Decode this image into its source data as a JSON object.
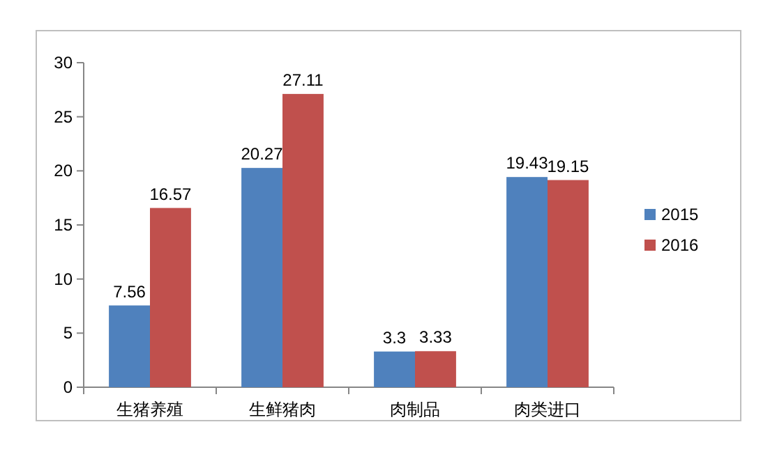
{
  "chart_data": {
    "type": "bar",
    "categories": [
      "生猪养殖",
      "生鲜猪肉",
      "肉制品",
      "肉类进口"
    ],
    "series": [
      {
        "name": "2015",
        "color": "#4f81bd",
        "values": [
          7.56,
          20.27,
          3.3,
          19.43
        ]
      },
      {
        "name": "2016",
        "color": "#c0504d",
        "values": [
          16.57,
          27.11,
          3.33,
          19.15
        ]
      }
    ],
    "ylim": [
      0,
      30
    ],
    "yticks": [
      0,
      5,
      10,
      15,
      20,
      25,
      30
    ],
    "data_labels": true,
    "legend": "right"
  }
}
